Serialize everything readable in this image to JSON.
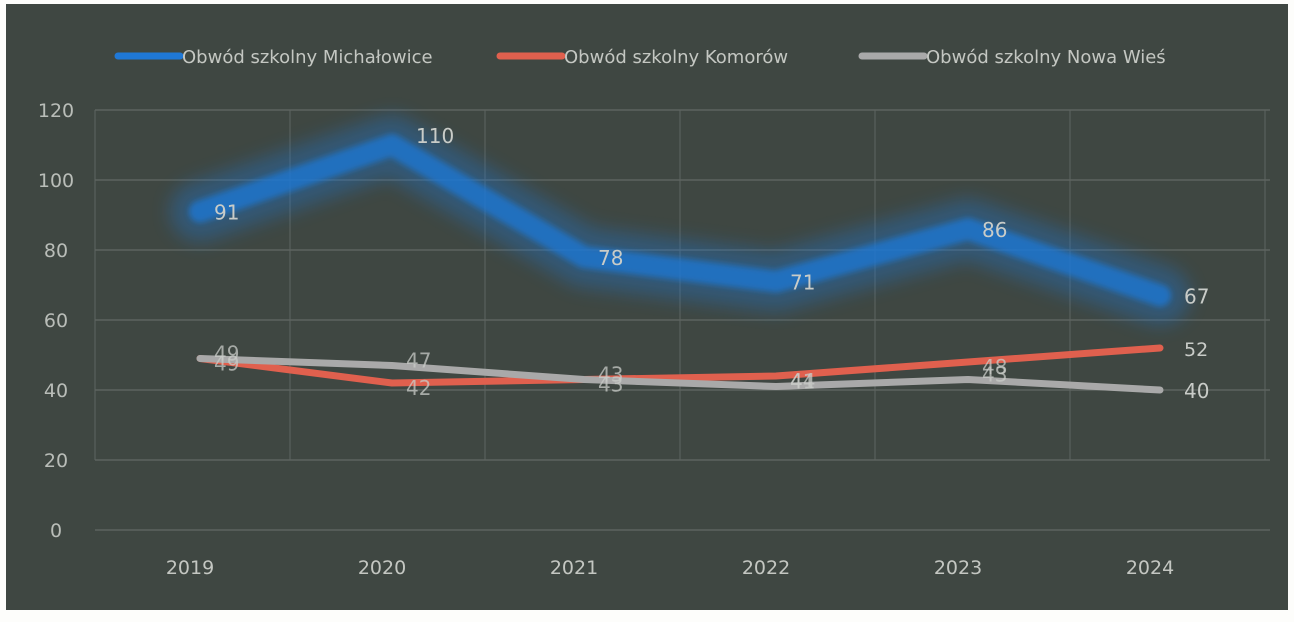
{
  "chart_data": {
    "type": "line",
    "title": "",
    "xlabel": "",
    "ylabel": "",
    "x": [
      "2019",
      "2020",
      "2021",
      "2022",
      "2023",
      "2024"
    ],
    "ylim": [
      0,
      120
    ],
    "yticks": [
      "0",
      "20",
      "40",
      "60",
      "80",
      "100",
      "120"
    ],
    "grid": true,
    "legend_position": "top",
    "background_color": "#3f4742",
    "series": [
      {
        "name": "Obwód szkolny Michałowice",
        "color": "#1f78d6",
        "values": [
          91,
          110,
          78,
          71,
          86,
          67
        ],
        "labels": [
          "91",
          "110",
          "78",
          "71",
          "86",
          "67"
        ]
      },
      {
        "name": "Obwód szkolny Komorów",
        "color": "#e0604e",
        "values": [
          49,
          42,
          43,
          44,
          48,
          52
        ],
        "labels": [
          "49",
          "42",
          "43",
          "44",
          "48",
          "52"
        ]
      },
      {
        "name": "Obwód szkolny Nowa Wieś",
        "color": "#a9a9a9",
        "values": [
          49,
          47,
          43,
          41,
          43,
          40
        ],
        "labels": [
          "49",
          "47",
          "43",
          "41",
          "43",
          "40"
        ]
      }
    ]
  }
}
